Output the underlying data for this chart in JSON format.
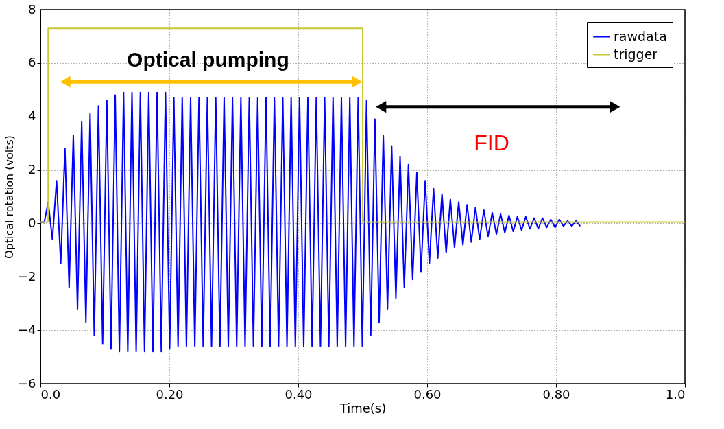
{
  "chart_data": {
    "type": "line",
    "xlabel": "Time(s)",
    "ylabel": "Optical rotation (volts)",
    "xlim": [
      0,
      1.0
    ],
    "ylim": [
      -6,
      8
    ],
    "xticks": [
      {
        "value": 0,
        "label": "0.0"
      },
      {
        "value": 0.2,
        "label": "0.20"
      },
      {
        "value": 0.4,
        "label": "0.40"
      },
      {
        "value": 0.6,
        "label": "0.60"
      },
      {
        "value": 0.8,
        "label": "0.80"
      },
      {
        "value": 1,
        "label": "1.0"
      }
    ],
    "yticks": [
      -6,
      -4,
      -2,
      0,
      2,
      4,
      6,
      8
    ],
    "grid": true,
    "legend": "top right",
    "marker": "none",
    "line_style": "solid",
    "series": [
      {
        "name": "rawdata",
        "color": "#0000ff",
        "x": [
          0,
          0.006,
          0.012,
          0.0185,
          0.025,
          0.0315,
          0.038,
          0.0445,
          0.051,
          0.0575,
          0.064,
          0.0705,
          0.077,
          0.0835,
          0.09,
          0.0965,
          0.103,
          0.1095,
          0.116,
          0.1225,
          0.129,
          0.1355,
          0.142,
          0.1485,
          0.155,
          0.1615,
          0.168,
          0.1745,
          0.181,
          0.1875,
          0.194,
          0.2005,
          0.207,
          0.2135,
          0.22,
          0.2265,
          0.233,
          0.2395,
          0.246,
          0.2525,
          0.259,
          0.2655,
          0.272,
          0.2785,
          0.285,
          0.2915,
          0.298,
          0.3045,
          0.311,
          0.3175,
          0.324,
          0.3305,
          0.337,
          0.3435,
          0.35,
          0.3565,
          0.363,
          0.3695,
          0.376,
          0.3825,
          0.389,
          0.3955,
          0.402,
          0.4085,
          0.415,
          0.4215,
          0.428,
          0.4345,
          0.441,
          0.4475,
          0.454,
          0.4605,
          0.467,
          0.4735,
          0.48,
          0.4865,
          0.493,
          0.4995,
          0.506,
          0.5125,
          0.519,
          0.5255,
          0.532,
          0.5385,
          0.545,
          0.5515,
          0.558,
          0.5645,
          0.571,
          0.5775,
          0.584,
          0.5905,
          0.597,
          0.6035,
          0.61,
          0.6165,
          0.623,
          0.6295,
          0.636,
          0.6425,
          0.649,
          0.6555,
          0.662,
          0.6685,
          0.675,
          0.6815,
          0.688,
          0.6945,
          0.701,
          0.7075,
          0.714,
          0.7205,
          0.727,
          0.7335,
          0.74,
          0.7465,
          0.753,
          0.7595,
          0.766,
          0.7725,
          0.779,
          0.7855,
          0.792,
          0.7985,
          0.805,
          0.8115,
          0.818,
          0.8245,
          0.831,
          0.8375
        ],
        "values": [
          0.05,
          0.05,
          0.8,
          -0.6,
          1.6,
          -1.5,
          2.8,
          -2.4,
          3.3,
          -3.2,
          3.8,
          -3.7,
          4.1,
          -4.2,
          4.4,
          -4.5,
          4.6,
          -4.7,
          4.8,
          -4.8,
          4.9,
          -4.8,
          4.9,
          -4.8,
          4.9,
          -4.8,
          4.9,
          -4.8,
          4.9,
          -4.8,
          4.9,
          -4.7,
          4.7,
          -4.6,
          4.7,
          -4.6,
          4.7,
          -4.6,
          4.7,
          -4.6,
          4.7,
          -4.6,
          4.7,
          -4.6,
          4.7,
          -4.6,
          4.7,
          -4.6,
          4.7,
          -4.6,
          4.7,
          -4.6,
          4.7,
          -4.6,
          4.7,
          -4.6,
          4.7,
          -4.6,
          4.7,
          -4.6,
          4.7,
          -4.6,
          4.7,
          -4.6,
          4.7,
          -4.6,
          4.7,
          -4.6,
          4.7,
          -4.6,
          4.7,
          -4.6,
          4.7,
          -4.6,
          4.7,
          -4.6,
          4.7,
          -4.6,
          4.6,
          -4.2,
          3.9,
          -3.7,
          3.3,
          -3.2,
          2.9,
          -2.8,
          2.5,
          -2.4,
          2.2,
          -2.1,
          1.9,
          -1.8,
          1.6,
          -1.5,
          1.3,
          -1.3,
          1.1,
          -1.1,
          0.9,
          -0.9,
          0.8,
          -0.8,
          0.7,
          -0.7,
          0.6,
          -0.6,
          0.5,
          -0.5,
          0.4,
          -0.4,
          0.35,
          -0.35,
          0.3,
          -0.3,
          0.25,
          -0.25,
          0.25,
          -0.2,
          0.2,
          -0.2,
          0.2,
          -0.15,
          0.15,
          -0.15,
          0.15,
          -0.1,
          0.1,
          -0.1,
          0.1,
          -0.1
        ]
      },
      {
        "name": "trigger",
        "color": "#c8c832",
        "x": [
          0,
          0.012,
          0.012,
          0.5,
          0.5,
          1.0
        ],
        "values": [
          0.05,
          0.05,
          7.3,
          7.3,
          0.05,
          0.05
        ]
      }
    ],
    "annotations": [
      "Optical pumping",
      "FID"
    ]
  }
}
